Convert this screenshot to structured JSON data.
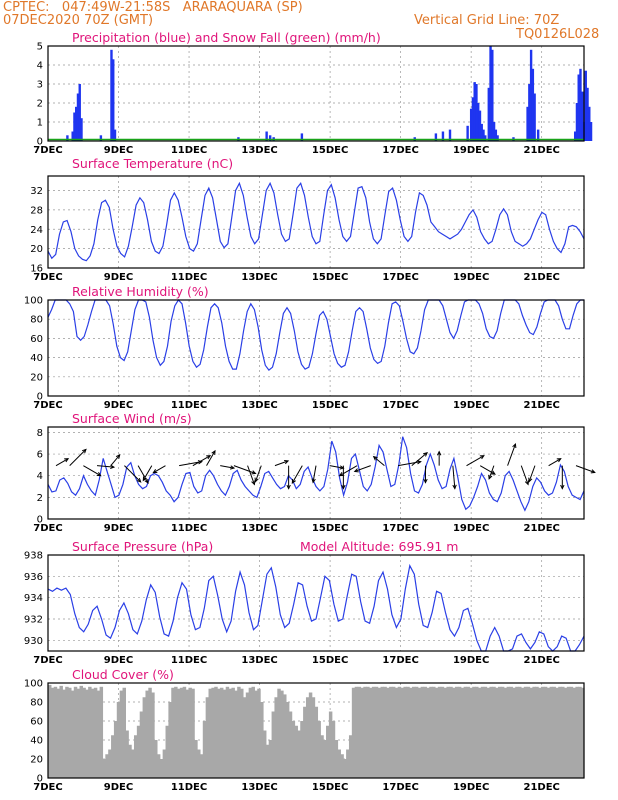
{
  "header": {
    "line1_left": "CPTEC:   047:49W-21:58S   ARARAQUARA (SP)",
    "line2_left": "07DEC2020 70Z (GMT)",
    "line2_right": "Vertical Grid Line: 70Z",
    "line3_right": "TQ0126L028"
  },
  "colors": {
    "header": "#e0782a",
    "panel_title": "#e0147a",
    "line": "#2a3fe6",
    "precip": "#1f35f0",
    "snow": "#19a319",
    "cloud": "#a8a8a8",
    "arrow": "#000000"
  },
  "x_ticks": [
    "7DEC",
    "9DEC",
    "11DEC",
    "13DEC",
    "15DEC",
    "17DEC",
    "19DEC",
    "21DEC"
  ],
  "chart_data": [
    {
      "type": "bar",
      "title": "Precipitation (blue) and Snow Fall (green) (mm/h)",
      "ylim": [
        0,
        5
      ],
      "yticks": [
        0,
        1,
        2,
        3,
        4,
        5
      ],
      "x": [
        0.55,
        0.7,
        0.75,
        0.8,
        0.85,
        0.9,
        0.95,
        1.5,
        1.8,
        1.85,
        1.9,
        5.4,
        6.2,
        6.3,
        6.4,
        7.2,
        10.4,
        11.0,
        11.2,
        11.4,
        11.9,
        12.0,
        12.05,
        12.1,
        12.15,
        12.2,
        12.25,
        12.3,
        12.35,
        12.4,
        12.5,
        12.55,
        12.6,
        12.65,
        12.7,
        12.75,
        13.2,
        13.6,
        13.65,
        13.7,
        13.75,
        13.8,
        13.9,
        14.95,
        15.0,
        15.05,
        15.1,
        15.15,
        15.2,
        15.25,
        15.3,
        15.35,
        15.4
      ],
      "values": [
        0.3,
        0.5,
        1.5,
        1.8,
        2.5,
        3.0,
        1.2,
        0.3,
        4.8,
        4.3,
        0.6,
        0.2,
        0.5,
        0.3,
        0.2,
        0.4,
        0.2,
        0.4,
        0.5,
        0.6,
        0.8,
        1.7,
        2.3,
        3.1,
        3.0,
        2.0,
        1.6,
        0.9,
        0.6,
        0.3,
        2.8,
        5.0,
        4.8,
        1.0,
        0.6,
        0.3,
        0.2,
        1.8,
        3.0,
        4.8,
        3.8,
        2.5,
        0.6,
        0.5,
        2.0,
        3.5,
        3.8,
        2.6,
        1.0,
        3.7,
        2.8,
        1.8,
        1.0
      ],
      "snow": [
        0,
        0,
        0,
        0,
        0,
        0,
        0,
        0
      ]
    },
    {
      "type": "line",
      "title": "Surface Temperature (nC)",
      "ylim": [
        16,
        35
      ],
      "yticks": [
        16,
        20,
        24,
        28,
        32
      ],
      "values": [
        19.5,
        18.0,
        18.8,
        23.0,
        25.5,
        25.8,
        23.5,
        20.0,
        18.5,
        17.8,
        17.5,
        18.5,
        21.0,
        26.0,
        29.5,
        30.0,
        28.5,
        24.0,
        20.5,
        19.0,
        18.3,
        20.5,
        24.5,
        29.0,
        30.5,
        29.5,
        26.0,
        21.5,
        19.5,
        19.0,
        20.5,
        25.0,
        30.0,
        31.5,
        30.0,
        26.5,
        22.5,
        20.0,
        19.5,
        21.0,
        26.0,
        31.0,
        32.5,
        30.5,
        26.0,
        21.5,
        20.2,
        21.0,
        26.5,
        32.0,
        33.5,
        31.0,
        26.5,
        22.5,
        21.0,
        22.0,
        27.0,
        32.0,
        33.5,
        31.5,
        27.0,
        23.0,
        21.5,
        22.0,
        27.0,
        32.5,
        33.5,
        31.0,
        26.5,
        22.5,
        21.0,
        21.5,
        27.0,
        32.0,
        33.2,
        30.5,
        26.0,
        22.5,
        21.5,
        22.5,
        27.5,
        32.5,
        32.8,
        30.5,
        25.5,
        22.0,
        21.0,
        22.0,
        27.0,
        31.8,
        32.5,
        30.0,
        26.0,
        22.5,
        21.5,
        22.5,
        27.5,
        31.5,
        31.0,
        29.0,
        25.5,
        24.5,
        23.5,
        23.0,
        22.5,
        22.0,
        22.5,
        23.0,
        24.0,
        25.5,
        27.0,
        28.0,
        26.5,
        23.5,
        22.0,
        21.0,
        21.5,
        24.0,
        27.0,
        28.2,
        27.0,
        23.5,
        21.5,
        21.0,
        20.5,
        21.0,
        22.0,
        24.0,
        26.0,
        27.5,
        27.0,
        24.0,
        21.5,
        20.0,
        19.2,
        21.0,
        24.5,
        24.8,
        24.5,
        23.5,
        22.0
      ]
    },
    {
      "type": "line",
      "title": "Relative Humidity (%)",
      "ylim": [
        0,
        100
      ],
      "yticks": [
        0,
        20,
        40,
        60,
        80,
        100
      ],
      "values": [
        82,
        90,
        100,
        100,
        100,
        100,
        96,
        88,
        62,
        58,
        62,
        74,
        88,
        100,
        100,
        100,
        100,
        94,
        75,
        52,
        40,
        37,
        46,
        68,
        90,
        100,
        100,
        98,
        82,
        58,
        40,
        32,
        36,
        52,
        78,
        94,
        100,
        96,
        76,
        52,
        36,
        30,
        33,
        48,
        72,
        92,
        96,
        92,
        76,
        52,
        36,
        28,
        28,
        44,
        68,
        88,
        96,
        90,
        72,
        48,
        32,
        27,
        30,
        44,
        66,
        86,
        92,
        86,
        68,
        46,
        33,
        28,
        30,
        44,
        65,
        84,
        88,
        80,
        62,
        44,
        34,
        30,
        32,
        46,
        68,
        88,
        92,
        88,
        70,
        50,
        38,
        34,
        36,
        52,
        76,
        96,
        98,
        94,
        78,
        60,
        46,
        44,
        50,
        68,
        90,
        100,
        100,
        100,
        100,
        94,
        80,
        66,
        60,
        68,
        84,
        98,
        100,
        100,
        100,
        96,
        86,
        70,
        62,
        60,
        68,
        86,
        100,
        100,
        100,
        100,
        96,
        84,
        74,
        66,
        64,
        72,
        86,
        98,
        100,
        100,
        100,
        94,
        80,
        70,
        70,
        84,
        96,
        100,
        100
      ]
    },
    {
      "type": "line",
      "title": "Surface Wind (m/s)",
      "ylim": [
        0,
        8.5
      ],
      "yticks": [
        0,
        2,
        4,
        6,
        8
      ],
      "values": [
        3.2,
        2.5,
        2.6,
        3.6,
        3.8,
        3.3,
        2.5,
        2.2,
        2.8,
        4.0,
        3.2,
        2.6,
        2.2,
        3.6,
        5.6,
        4.4,
        3.2,
        2.0,
        2.2,
        3.2,
        4.8,
        5.2,
        4.0,
        3.2,
        2.8,
        3.0,
        4.0,
        4.2,
        4.0,
        3.4,
        2.6,
        2.2,
        1.6,
        2.0,
        3.2,
        4.2,
        4.3,
        3.0,
        2.4,
        2.6,
        4.0,
        4.5,
        4.0,
        3.2,
        2.6,
        2.2,
        3.0,
        4.2,
        4.5,
        3.6,
        3.0,
        2.6,
        2.2,
        2.0,
        3.0,
        4.2,
        4.4,
        3.8,
        3.2,
        2.8,
        3.0,
        4.0,
        3.6,
        2.8,
        3.2,
        4.4,
        4.8,
        3.8,
        3.0,
        2.6,
        3.0,
        4.6,
        7.2,
        6.2,
        3.8,
        2.2,
        3.4,
        5.6,
        6.0,
        4.5,
        3.0,
        2.6,
        3.2,
        4.8,
        6.8,
        6.2,
        4.6,
        3.0,
        3.2,
        5.0,
        7.6,
        6.6,
        4.2,
        2.6,
        2.4,
        3.2,
        5.0,
        6.0,
        5.0,
        3.6,
        2.8,
        3.0,
        4.6,
        5.6,
        3.8,
        1.8,
        0.9,
        1.2,
        2.0,
        3.0,
        4.2,
        3.6,
        2.4,
        1.8,
        1.6,
        2.4,
        4.0,
        4.4,
        3.6,
        2.6,
        1.6,
        0.8,
        1.6,
        3.0,
        3.8,
        3.4,
        2.6,
        2.2,
        2.4,
        3.4,
        5.0,
        4.4,
        3.0,
        2.2,
        2.0,
        1.8,
        2.6
      ],
      "arrows_deg": [
        60,
        45,
        120,
        95,
        40,
        135,
        150,
        210,
        240,
        80,
        60,
        30,
        100,
        110,
        160,
        200,
        70,
        180,
        210,
        190,
        100,
        180,
        240,
        250,
        310,
        80,
        50,
        180,
        0,
        175,
        60,
        120,
        200,
        20,
        160,
        200,
        60,
        180,
        110
      ]
    },
    {
      "type": "line",
      "title": "Surface Pressure (hPa)",
      "annotation": "Model Altitude: 695.91 m",
      "ylim": [
        929,
        938
      ],
      "yticks": [
        930,
        932,
        934,
        936,
        938
      ],
      "values": [
        934.8,
        934.6,
        934.9,
        934.7,
        934.9,
        934.3,
        932.5,
        931.2,
        930.8,
        931.5,
        932.8,
        933.2,
        932.0,
        930.5,
        930.2,
        931.2,
        932.8,
        933.5,
        932.5,
        931.0,
        930.6,
        931.8,
        933.8,
        935.2,
        934.5,
        932.2,
        930.6,
        930.4,
        931.8,
        934.0,
        935.4,
        934.8,
        932.4,
        931.0,
        931.2,
        933.0,
        935.6,
        936.0,
        934.2,
        932.0,
        930.8,
        931.8,
        934.6,
        936.4,
        935.2,
        932.6,
        931.0,
        931.4,
        933.8,
        936.2,
        936.8,
        935.0,
        932.4,
        931.2,
        931.6,
        933.4,
        935.4,
        935.2,
        933.2,
        931.8,
        932.0,
        934.0,
        936.0,
        935.6,
        933.4,
        931.8,
        932.0,
        934.2,
        936.2,
        936.0,
        933.6,
        931.8,
        931.6,
        933.2,
        935.6,
        936.4,
        934.8,
        932.4,
        931.2,
        932.0,
        934.8,
        937.0,
        936.2,
        933.4,
        931.4,
        931.2,
        932.6,
        934.6,
        934.4,
        932.6,
        931.0,
        930.4,
        931.2,
        932.8,
        933.0,
        931.6,
        930.0,
        928.9,
        929.0,
        930.4,
        931.2,
        930.4,
        929.0,
        928.5,
        929.2,
        930.4,
        930.6,
        929.8,
        929.2,
        929.8,
        930.8,
        930.6,
        929.4,
        928.8,
        929.4,
        930.4,
        930.2,
        929.0,
        928.6,
        929.6,
        930.4
      ]
    },
    {
      "type": "area",
      "title": "Cloud Cover (%)",
      "ylim": [
        0,
        100
      ],
      "yticks": [
        0,
        20,
        40,
        60,
        80,
        100
      ],
      "values": [
        98,
        95,
        96,
        94,
        97,
        93,
        96,
        95,
        92,
        96,
        94,
        97,
        95,
        93,
        96,
        94,
        95,
        92,
        96,
        20,
        25,
        30,
        45,
        60,
        80,
        92,
        95,
        50,
        35,
        30,
        45,
        55,
        70,
        85,
        92,
        95,
        90,
        40,
        25,
        20,
        30,
        55,
        80,
        95,
        96,
        94,
        95,
        96,
        93,
        95,
        94,
        40,
        30,
        25,
        60,
        85,
        94,
        95,
        96,
        94,
        95,
        93,
        96,
        94,
        95,
        92,
        96,
        94,
        85,
        90,
        95,
        96,
        92,
        94,
        80,
        50,
        35,
        40,
        70,
        85,
        94,
        92,
        88,
        80,
        70,
        60,
        55,
        50,
        60,
        75,
        85,
        90,
        85,
        75,
        60,
        45,
        40,
        55,
        70,
        60,
        40,
        30,
        25,
        20,
        30,
        45,
        95,
        96,
        96,
        95,
        96,
        96,
        95,
        96,
        96,
        95,
        96,
        96,
        95,
        96,
        96,
        95,
        96,
        95,
        96,
        96,
        95,
        96,
        96,
        95,
        96,
        96,
        95,
        96,
        96,
        95,
        96,
        96,
        95,
        96,
        96,
        95,
        96,
        96,
        95,
        96,
        96,
        95,
        96,
        96,
        95,
        96,
        96,
        95,
        96,
        96,
        95,
        96,
        96,
        95,
        96,
        96,
        95,
        96,
        96,
        95,
        96,
        96,
        95,
        96,
        96,
        95,
        96,
        96,
        95,
        96,
        96,
        95,
        96,
        96,
        95,
        96,
        96,
        95,
        96,
        96,
        95
      ]
    }
  ]
}
